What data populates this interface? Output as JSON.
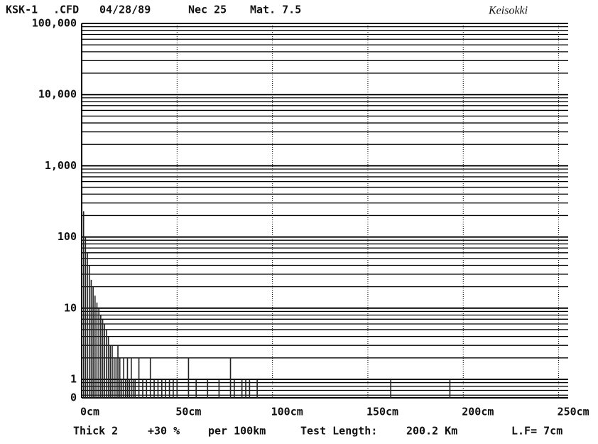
{
  "chart_data": {
    "type": "bar",
    "header": [
      "KSK-1",
      ".CFD",
      "04/28/89",
      "Nec 25",
      "Mat. 7.5"
    ],
    "brand": "Keisokki",
    "footer": [
      "Thick 2",
      "+30 %",
      "per 100km",
      "Test Length:",
      "200.2 Km",
      "L.F= 7cm"
    ],
    "log_scale": true,
    "grid": true,
    "color": "#222222",
    "ylim": [
      0.55,
      100000
    ],
    "yticks": [
      {
        "value": 1,
        "label": "1"
      },
      {
        "value": 10,
        "label": "10"
      },
      {
        "value": 100,
        "label": "100"
      },
      {
        "value": 1000,
        "label": "1,000"
      },
      {
        "value": 10000,
        "label": "10,000"
      },
      {
        "value": 100000,
        "label": "100,000"
      }
    ],
    "y_zero_label": "0",
    "xlim": [
      0,
      255
    ],
    "xticks": [
      {
        "value": 0,
        "label": "0cm"
      },
      {
        "value": 50,
        "label": "50cm"
      },
      {
        "value": 100,
        "label": "100cm"
      },
      {
        "value": 150,
        "label": "150cm"
      },
      {
        "value": 200,
        "label": "200cm"
      },
      {
        "value": 250,
        "label": "250cm"
      }
    ],
    "x": [
      1,
      2,
      3,
      4,
      5,
      6,
      7,
      8,
      9,
      10,
      11,
      12,
      13,
      14,
      15,
      16,
      17,
      18,
      19,
      20,
      21,
      22,
      23,
      24,
      25,
      26,
      27,
      28,
      30,
      32,
      34,
      36,
      38,
      40,
      42,
      44,
      46,
      48,
      50,
      56,
      60,
      66,
      72,
      78,
      80,
      84,
      86,
      88,
      92,
      162,
      193
    ],
    "values": [
      230,
      100,
      60,
      40,
      25,
      20,
      15,
      12,
      10,
      8,
      7,
      6,
      5,
      4,
      3,
      3,
      2,
      2,
      3,
      2,
      1,
      2,
      1,
      2,
      1,
      2,
      1,
      1,
      2,
      1,
      1,
      2,
      1,
      1,
      1,
      1,
      1,
      1,
      1,
      2,
      1,
      1,
      1,
      2,
      1,
      1,
      1,
      1,
      1,
      1,
      1
    ]
  }
}
